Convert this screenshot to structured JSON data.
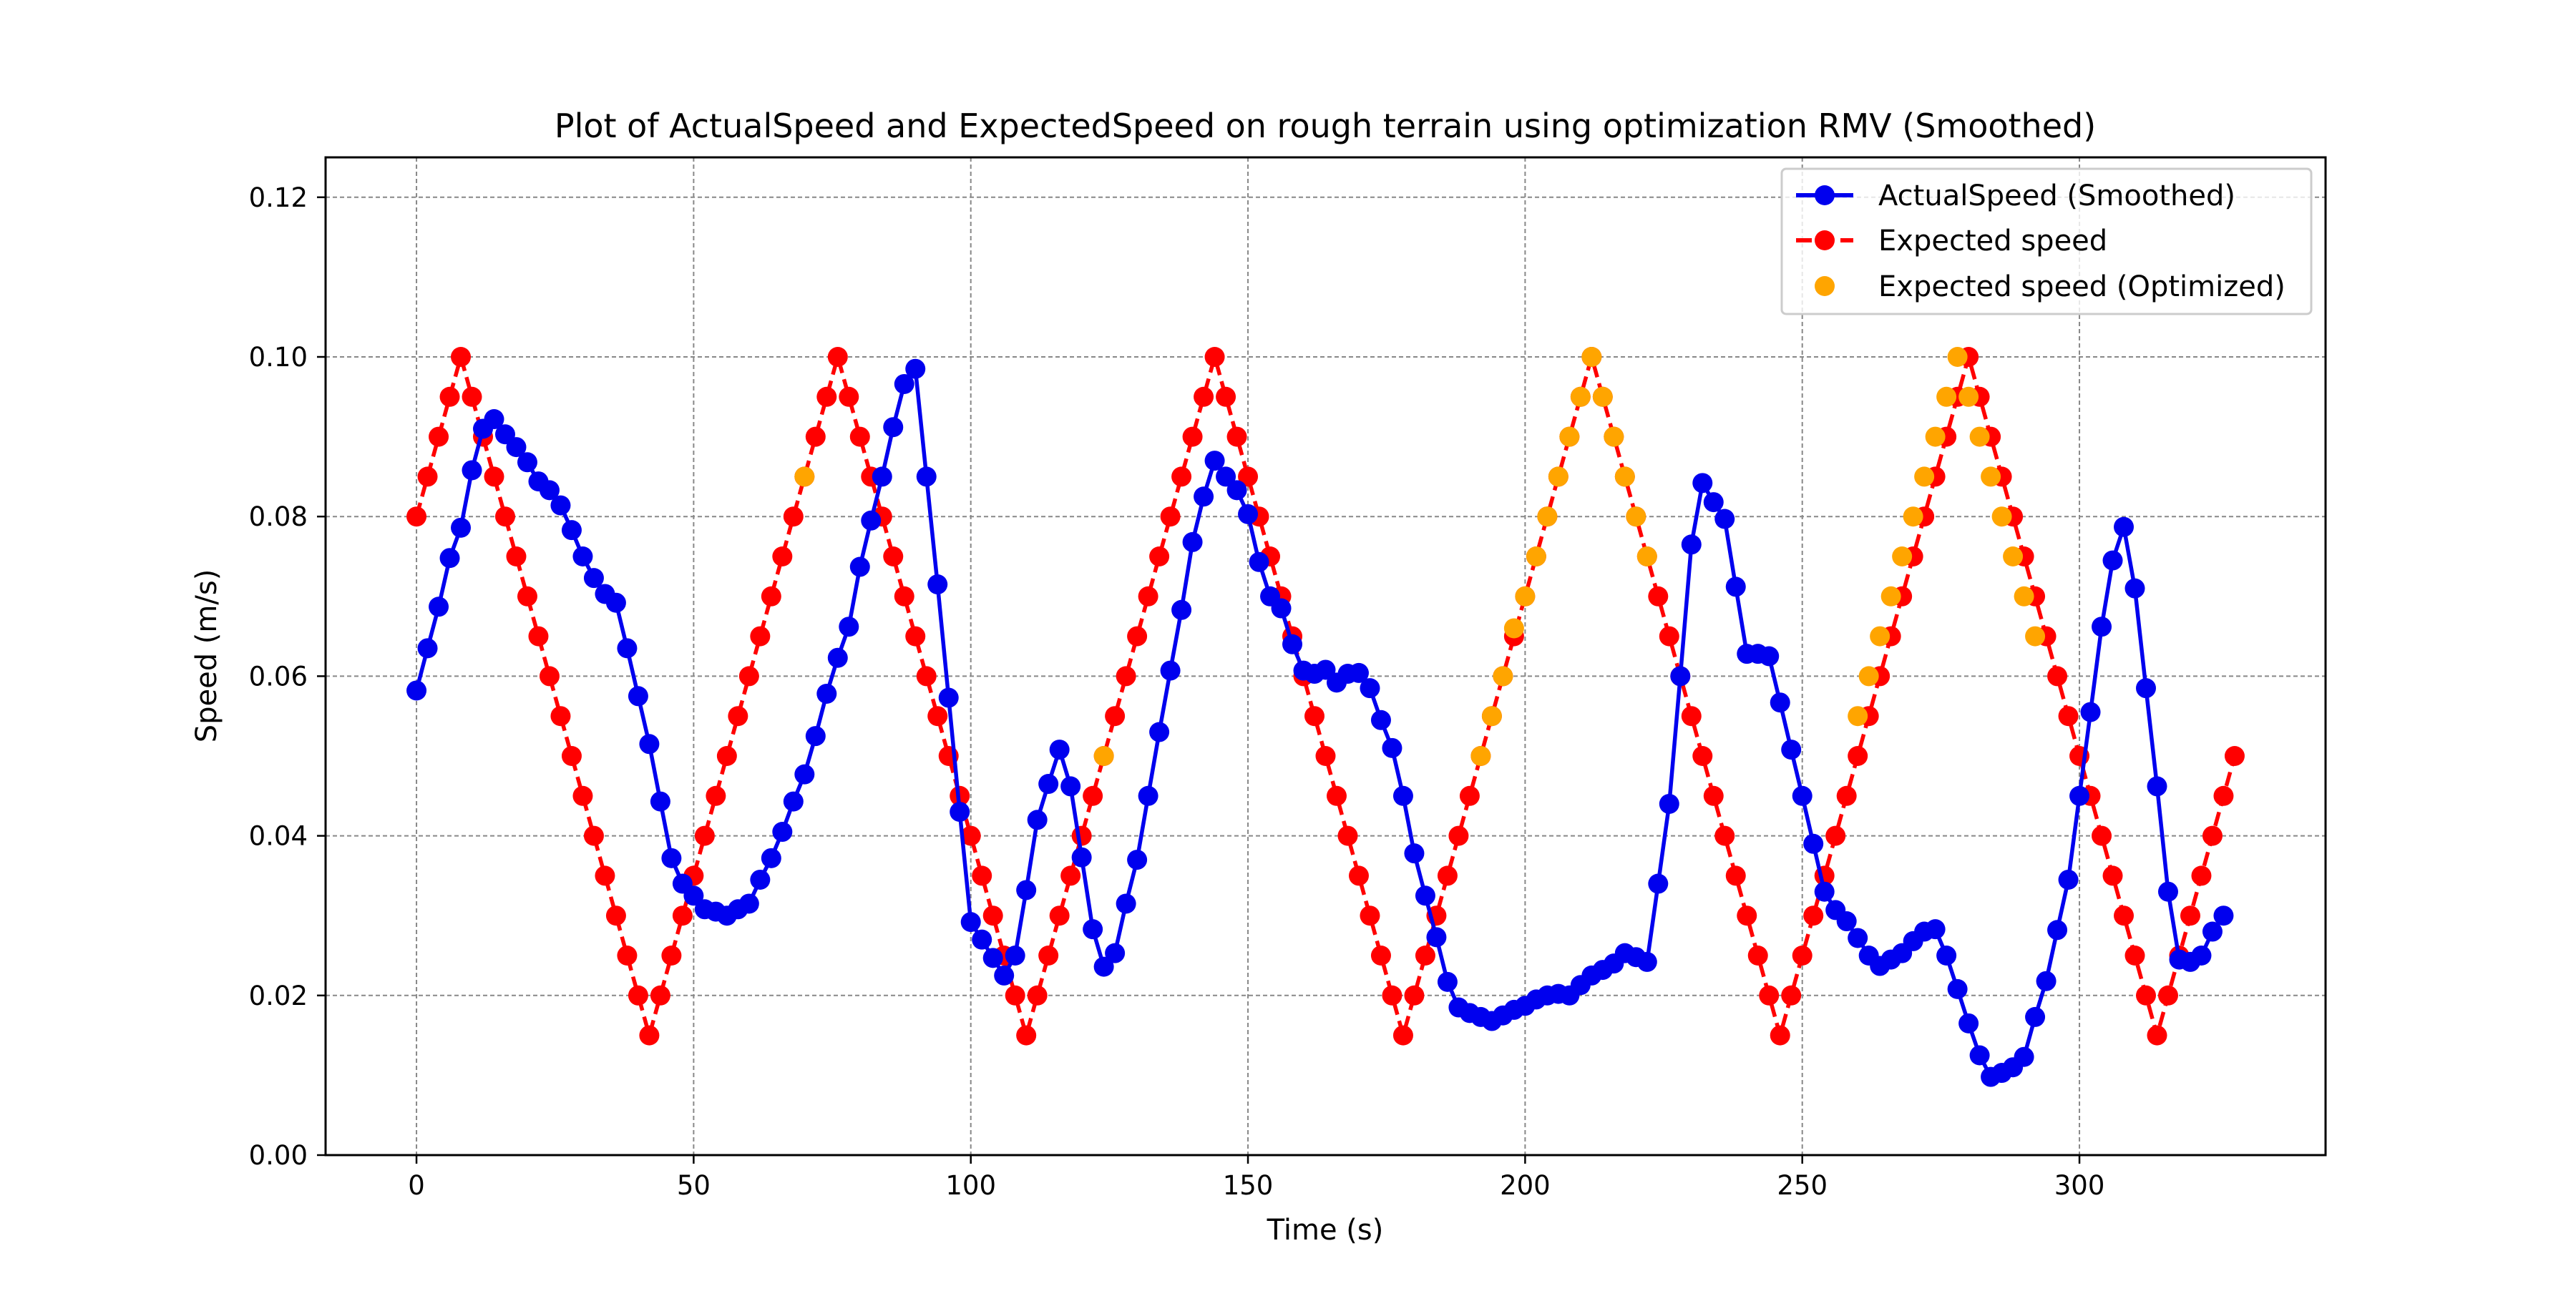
{
  "chart_data": {
    "type": "line",
    "title": "Plot of ActualSpeed and ExpectedSpeed on rough terrain using optimization RMV (Smoothed)",
    "xlabel": "Time (s)",
    "ylabel": "Speed (m/s)",
    "xlim": [
      -16.4,
      344.4
    ],
    "ylim": [
      0.0,
      0.125
    ],
    "x_ticks": [
      0,
      50,
      100,
      150,
      200,
      250,
      300
    ],
    "x_tick_labels": [
      "0",
      "50",
      "100",
      "150",
      "200",
      "250",
      "300"
    ],
    "y_ticks": [
      0.0,
      0.02,
      0.04,
      0.06,
      0.08,
      0.1,
      0.12
    ],
    "y_tick_labels": [
      "0.00",
      "0.02",
      "0.04",
      "0.06",
      "0.08",
      "0.10",
      "0.12"
    ],
    "grid": true,
    "legend_position": "top-right",
    "colors": {
      "actual": "#0000ee",
      "expected": "#ff0000",
      "optimized": "#ffa500",
      "grid": "#888888"
    },
    "series": [
      {
        "name": "ActualSpeed (Smoothed)",
        "style": "solid-line-markers",
        "x_start": 0,
        "x_step": 2,
        "values": [
          0.0582,
          0.0635,
          0.0687,
          0.0748,
          0.0786,
          0.0858,
          0.091,
          0.0922,
          0.0903,
          0.0887,
          0.0868,
          0.0844,
          0.0833,
          0.0814,
          0.0783,
          0.075,
          0.0723,
          0.0703,
          0.0692,
          0.0635,
          0.0575,
          0.0515,
          0.0443,
          0.0372,
          0.034,
          0.0325,
          0.0308,
          0.0305,
          0.03,
          0.0308,
          0.0315,
          0.0345,
          0.0372,
          0.0405,
          0.0443,
          0.0477,
          0.0525,
          0.0578,
          0.0623,
          0.0662,
          0.0737,
          0.0795,
          0.085,
          0.0912,
          0.0966,
          0.0985,
          0.085,
          0.0715,
          0.0573,
          0.043,
          0.0292,
          0.027,
          0.0247,
          0.0225,
          0.025,
          0.0332,
          0.042,
          0.0465,
          0.0508,
          0.0462,
          0.0373,
          0.0283,
          0.0236,
          0.0253,
          0.0315,
          0.037,
          0.045,
          0.053,
          0.0607,
          0.0683,
          0.0768,
          0.0825,
          0.087,
          0.085,
          0.0833,
          0.0803,
          0.0743,
          0.07,
          0.0685,
          0.064,
          0.0607,
          0.0603,
          0.0608,
          0.0592,
          0.0603,
          0.0604,
          0.0585,
          0.0545,
          0.051,
          0.045,
          0.0378,
          0.0325,
          0.0273,
          0.0217,
          0.0185,
          0.0178,
          0.0173,
          0.0168,
          0.0175,
          0.0182,
          0.0187,
          0.0195,
          0.02,
          0.0202,
          0.02,
          0.0213,
          0.0225,
          0.0232,
          0.024,
          0.0253,
          0.0248,
          0.0242,
          0.034,
          0.044,
          0.06,
          0.0765,
          0.0842,
          0.0818,
          0.0797,
          0.0712,
          0.0628,
          0.0628,
          0.0625,
          0.0567,
          0.0508,
          0.045,
          0.039,
          0.033,
          0.0307,
          0.0293,
          0.0272,
          0.025,
          0.0237,
          0.0245,
          0.0253,
          0.0268,
          0.028,
          0.0283,
          0.025,
          0.0208,
          0.0165,
          0.0125,
          0.0098,
          0.0103,
          0.011,
          0.0123,
          0.0173,
          0.0218,
          0.0282,
          0.0345,
          0.045,
          0.0555,
          0.0662,
          0.0745,
          0.0787,
          0.071,
          0.0585,
          0.0462,
          0.033,
          0.0245,
          0.0242,
          0.025,
          0.028,
          0.03
        ]
      },
      {
        "name": "Expected speed",
        "style": "dashed-line-markers",
        "x_start": 0,
        "x_step": 2,
        "values": [
          0.08,
          0.085,
          0.09,
          0.095,
          0.1,
          0.095,
          0.09,
          0.085,
          0.08,
          0.075,
          0.07,
          0.065,
          0.06,
          0.055,
          0.05,
          0.045,
          0.04,
          0.035,
          0.03,
          0.025,
          0.02,
          0.015,
          0.02,
          0.025,
          0.03,
          0.035,
          0.04,
          0.045,
          0.05,
          0.055,
          0.06,
          0.065,
          0.07,
          0.075,
          0.08,
          0.085,
          0.09,
          0.095,
          0.1,
          0.095,
          0.09,
          0.085,
          0.08,
          0.075,
          0.07,
          0.065,
          0.06,
          0.055,
          0.05,
          0.045,
          0.04,
          0.035,
          0.03,
          0.025,
          0.02,
          0.015,
          0.02,
          0.025,
          0.03,
          0.035,
          0.04,
          0.045,
          0.05,
          0.055,
          0.06,
          0.065,
          0.07,
          0.075,
          0.08,
          0.085,
          0.09,
          0.095,
          0.1,
          0.095,
          0.09,
          0.085,
          0.08,
          0.075,
          0.07,
          0.065,
          0.06,
          0.055,
          0.05,
          0.045,
          0.04,
          0.035,
          0.03,
          0.025,
          0.02,
          0.015,
          0.02,
          0.025,
          0.03,
          0.035,
          0.04,
          0.045,
          0.05,
          0.055,
          0.06,
          0.065,
          0.07,
          0.075,
          0.08,
          0.085,
          0.09,
          0.095,
          0.1,
          0.095,
          0.09,
          0.085,
          0.08,
          0.075,
          0.07,
          0.065,
          0.06,
          0.055,
          0.05,
          0.045,
          0.04,
          0.035,
          0.03,
          0.025,
          0.02,
          0.015,
          0.02,
          0.025,
          0.03,
          0.035,
          0.04,
          0.045,
          0.05,
          0.055,
          0.06,
          0.065,
          0.07,
          0.075,
          0.08,
          0.085,
          0.09,
          0.095,
          0.1,
          0.095,
          0.09,
          0.085,
          0.08,
          0.075,
          0.07,
          0.065,
          0.06,
          0.055,
          0.05,
          0.045,
          0.04,
          0.035,
          0.03,
          0.025,
          0.02,
          0.015,
          0.02,
          0.025,
          0.03,
          0.035,
          0.04,
          0.045,
          0.05
        ]
      },
      {
        "name": "Expected speed (Optimized)",
        "style": "markers-only",
        "points": [
          [
            70,
            0.085
          ],
          [
            124,
            0.05
          ],
          [
            192,
            0.05
          ],
          [
            194,
            0.055
          ],
          [
            196,
            0.06
          ],
          [
            198,
            0.066
          ],
          [
            200,
            0.07
          ],
          [
            202,
            0.075
          ],
          [
            204,
            0.08
          ],
          [
            206,
            0.085
          ],
          [
            208,
            0.09
          ],
          [
            210,
            0.095
          ],
          [
            212,
            0.1
          ],
          [
            214,
            0.095
          ],
          [
            216,
            0.09
          ],
          [
            218,
            0.085
          ],
          [
            220,
            0.08
          ],
          [
            222,
            0.075
          ],
          [
            260,
            0.055
          ],
          [
            262,
            0.06
          ],
          [
            264,
            0.065
          ],
          [
            266,
            0.07
          ],
          [
            268,
            0.075
          ],
          [
            270,
            0.08
          ],
          [
            272,
            0.085
          ],
          [
            274,
            0.09
          ],
          [
            276,
            0.095
          ],
          [
            278,
            0.1
          ],
          [
            280,
            0.095
          ],
          [
            282,
            0.09
          ],
          [
            284,
            0.085
          ],
          [
            286,
            0.08
          ],
          [
            288,
            0.075
          ],
          [
            290,
            0.07
          ],
          [
            292,
            0.065
          ]
        ]
      }
    ]
  }
}
